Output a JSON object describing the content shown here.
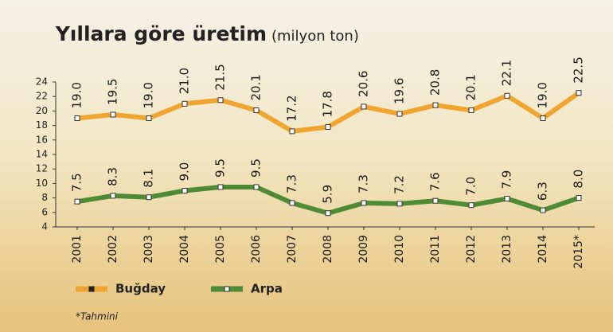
{
  "chart_data": {
    "type": "line",
    "title": "Yıllara göre üretim",
    "subtitle": "(milyon ton)",
    "categories": [
      "2001",
      "2002",
      "2003",
      "2004",
      "2005",
      "2006",
      "2007",
      "2008",
      "2009",
      "2010",
      "2011",
      "2012",
      "2013",
      "2014",
      "2015*"
    ],
    "series": [
      {
        "name": "Buğday",
        "color": "#f0a530",
        "values": [
          19.0,
          19.5,
          19.0,
          21.0,
          21.5,
          20.1,
          17.2,
          17.8,
          20.6,
          19.6,
          20.8,
          20.1,
          22.1,
          19.0,
          22.5
        ],
        "value_labels": [
          "19.0",
          "19.5",
          "19.0",
          "21.0",
          "21.5",
          "20.1",
          "17.2",
          "17.8",
          "20.6",
          "19.6",
          "20.8",
          "20.1",
          "22.1",
          "19.0",
          "22.5"
        ]
      },
      {
        "name": "Arpa",
        "color": "#4f8a35",
        "values": [
          7.5,
          8.3,
          8.1,
          9.0,
          9.5,
          9.5,
          7.3,
          5.9,
          7.3,
          7.2,
          7.6,
          7.0,
          7.9,
          6.3,
          8.0
        ],
        "value_labels": [
          "7.5",
          "8.3",
          "8.1",
          "9.0",
          "9.5",
          "9.5",
          "7.3",
          "5.9",
          "7.3",
          "7.2",
          "7.6",
          "7.0",
          "7.9",
          "6.3",
          "8.0"
        ]
      }
    ],
    "ylim": [
      4,
      24
    ],
    "yticks": [
      4,
      6,
      8,
      10,
      12,
      14,
      16,
      18,
      20,
      22,
      24
    ],
    "note": "*Tahmini"
  }
}
